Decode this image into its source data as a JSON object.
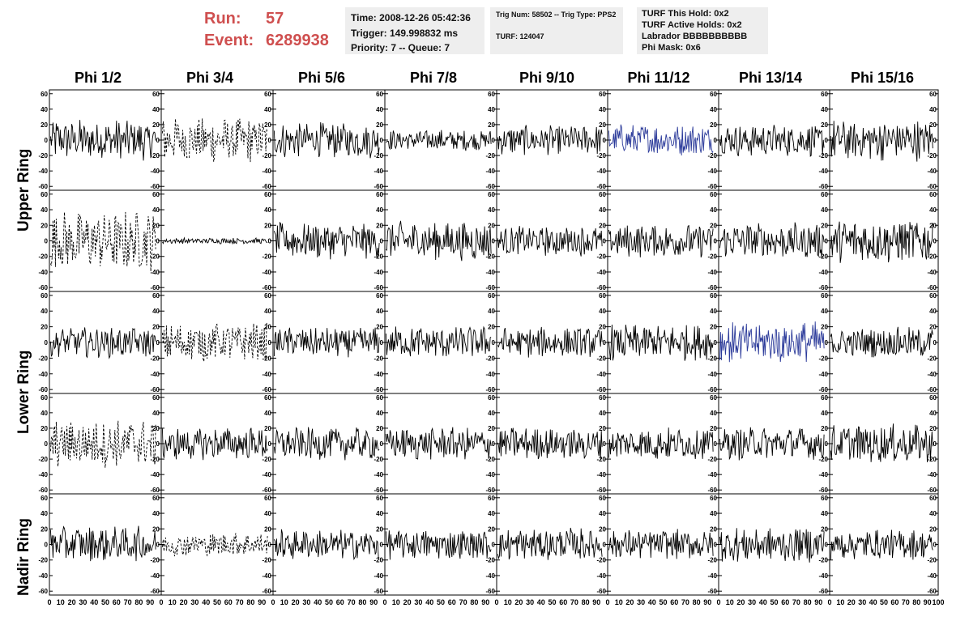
{
  "header": {
    "run_label": "Run:",
    "run_value": "57",
    "event_label": "Event:",
    "event_value": "6289938"
  },
  "info_box_1": {
    "line1": "Time: 2008-12-26 05:42:36",
    "line2": "Trigger: 149.998832 ms",
    "line3": "Priority: 7 -- Queue: 7"
  },
  "info_box_2": {
    "line1": "Trig Num: 58502 -- Trig Type: PPS2",
    "line2": "TURF: 124047"
  },
  "info_box_3": {
    "line1": "TURF This Hold: 0x2",
    "line2": "TURF Active Holds: 0x2",
    "line3": "Labrador BBBBBBBBBB",
    "line4": "Phi Mask: 0x6"
  },
  "columns": [
    "Phi 1/2",
    "Phi 3/4",
    "Phi 5/6",
    "Phi 7/8",
    "Phi 9/10",
    "Phi 11/12",
    "Phi 13/14",
    "Phi 15/16"
  ],
  "row_groups": [
    "Upper Ring",
    "Lower Ring",
    "Nadir Ring"
  ],
  "colors": {
    "trace": "#000000",
    "highlight_trace": "#2b3a9a",
    "run_text": "#cf4f4f",
    "box_bg": "#eeeeee"
  },
  "chart_data": {
    "type": "line",
    "description_rows": 5,
    "description_cols": 8,
    "x_range": [
      0,
      100
    ],
    "y_range": [
      -65,
      65
    ],
    "x_ticks": [
      "0",
      "10",
      "20",
      "30",
      "40",
      "50",
      "60",
      "70",
      "80",
      "90",
      "100"
    ],
    "y_ticks": [
      "60",
      "40",
      "20",
      "0",
      "-20",
      "-40",
      "-60"
    ],
    "panels": [
      [
        {
          "amp": 28,
          "style": "solid"
        },
        {
          "amp": 30,
          "style": "dashed"
        },
        {
          "amp": 24,
          "style": "solid"
        },
        {
          "amp": 14,
          "style": "solid"
        },
        {
          "amp": 20,
          "style": "solid"
        },
        {
          "amp": 22,
          "style": "solid",
          "highlight": true
        },
        {
          "amp": 22,
          "style": "solid"
        },
        {
          "amp": 28,
          "style": "solid"
        }
      ],
      [
        {
          "amp": 40,
          "style": "dashed"
        },
        {
          "amp": 4,
          "style": "solid"
        },
        {
          "amp": 24,
          "style": "solid"
        },
        {
          "amp": 26,
          "style": "solid"
        },
        {
          "amp": 20,
          "style": "solid"
        },
        {
          "amp": 22,
          "style": "solid"
        },
        {
          "amp": 24,
          "style": "solid"
        },
        {
          "amp": 30,
          "style": "solid"
        }
      ],
      [
        {
          "amp": 20,
          "style": "solid"
        },
        {
          "amp": 26,
          "style": "dashed"
        },
        {
          "amp": 20,
          "style": "solid"
        },
        {
          "amp": 22,
          "style": "solid"
        },
        {
          "amp": 20,
          "style": "solid"
        },
        {
          "amp": 24,
          "style": "solid"
        },
        {
          "amp": 28,
          "style": "solid",
          "highlight": true
        },
        {
          "amp": 20,
          "style": "solid"
        }
      ],
      [
        {
          "amp": 32,
          "style": "dashed"
        },
        {
          "amp": 22,
          "style": "solid"
        },
        {
          "amp": 22,
          "style": "solid"
        },
        {
          "amp": 22,
          "style": "solid"
        },
        {
          "amp": 22,
          "style": "solid"
        },
        {
          "amp": 22,
          "style": "solid"
        },
        {
          "amp": 22,
          "style": "solid"
        },
        {
          "amp": 26,
          "style": "solid"
        }
      ],
      [
        {
          "amp": 24,
          "style": "solid"
        },
        {
          "amp": 16,
          "style": "dashed"
        },
        {
          "amp": 20,
          "style": "solid"
        },
        {
          "amp": 20,
          "style": "solid"
        },
        {
          "amp": 22,
          "style": "solid"
        },
        {
          "amp": 20,
          "style": "solid"
        },
        {
          "amp": 24,
          "style": "solid"
        },
        {
          "amp": 20,
          "style": "solid"
        }
      ]
    ]
  }
}
